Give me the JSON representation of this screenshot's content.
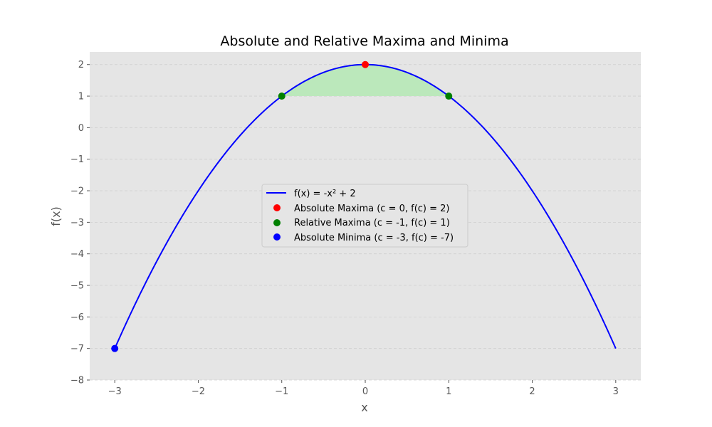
{
  "chart_data": {
    "type": "line",
    "title": "Absolute and Relative Maxima and Minima",
    "xlabel": "x",
    "ylabel": "f(x)",
    "xlim": [
      -3.3,
      3.3
    ],
    "ylim": [
      -8,
      2.4
    ],
    "xticks": [
      -3,
      -2,
      -1,
      0,
      1,
      2,
      3
    ],
    "yticks": [
      -8,
      -7,
      -6,
      -5,
      -4,
      -3,
      -2,
      -1,
      0,
      1,
      2
    ],
    "tick_labels_x": [
      "−3",
      "−2",
      "−1",
      "0",
      "1",
      "2",
      "3"
    ],
    "tick_labels_y": [
      "−8",
      "−7",
      "−6",
      "−5",
      "−4",
      "−3",
      "−2",
      "−1",
      "0",
      "1",
      "2"
    ],
    "grid": "horizontal dashed",
    "legend_position": "center",
    "background_color": "#e5e5e5",
    "series": [
      {
        "name": "f(x) = -x² + 2",
        "kind": "line",
        "color": "#0000ff",
        "function": "-x^2 + 2",
        "x_range": [
          -3,
          3
        ]
      },
      {
        "name": "Absolute Maxima (c = 0, f(c) = 2)",
        "kind": "scatter",
        "color": "#ff0000",
        "points": [
          [
            0,
            2
          ]
        ]
      },
      {
        "name": "Relative Maxima (c = -1, f(c) = 1)",
        "kind": "scatter",
        "color": "#008000",
        "points": [
          [
            -1,
            1
          ],
          [
            1,
            1
          ]
        ]
      },
      {
        "name": "Absolute Minima (c = -3, f(c) = -7)",
        "kind": "scatter",
        "color": "#0000ff",
        "points": [
          [
            -3,
            -7
          ]
        ]
      }
    ],
    "shaded_region": {
      "x_range": [
        -1,
        1
      ],
      "y_lower": 1,
      "color": "#bbe8bb"
    }
  }
}
